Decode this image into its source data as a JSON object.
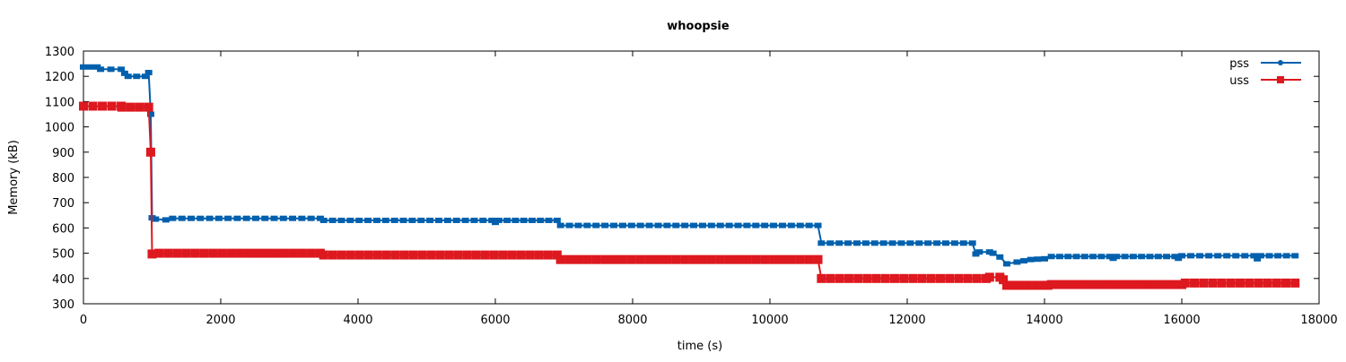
{
  "chart_data": {
    "type": "line",
    "title": "whoopsie",
    "xlabel": "time (s)",
    "ylabel": "Memory (kB)",
    "xlim": [
      0,
      18000
    ],
    "ylim": [
      300,
      1300
    ],
    "xticks": [
      0,
      2000,
      4000,
      6000,
      8000,
      10000,
      12000,
      14000,
      16000,
      18000
    ],
    "yticks": [
      300,
      400,
      500,
      600,
      700,
      800,
      900,
      1000,
      1100,
      1200,
      1300
    ],
    "grid": false,
    "legend_position": "top-right",
    "series": [
      {
        "name": "pss",
        "color": "#0060ad",
        "marker": "circle",
        "x": [
          0,
          200,
          250,
          550,
          600,
          650,
          900,
          950,
          980,
          1000,
          1050,
          1200,
          1300,
          3450,
          3500,
          5950,
          6000,
          6050,
          6900,
          6950,
          10700,
          10750,
          12950,
          13000,
          13050,
          13200,
          13250,
          13350,
          13450,
          13600,
          13800,
          14000,
          14100,
          14950,
          15000,
          15050,
          15900,
          15950,
          16000,
          17050,
          17100,
          17150,
          17650
        ],
        "y": [
          1237,
          1237,
          1228,
          1228,
          1212,
          1200,
          1200,
          1215,
          1050,
          640,
          635,
          632,
          638,
          638,
          630,
          630,
          622,
          630,
          630,
          610,
          610,
          540,
          540,
          497,
          505,
          505,
          500,
          485,
          458,
          465,
          475,
          478,
          487,
          487,
          480,
          487,
          487,
          480,
          490,
          490,
          478,
          490,
          490
        ]
      },
      {
        "name": "uss",
        "color": "#dd181f",
        "marker": "square",
        "x": [
          0,
          550,
          560,
          950,
          980,
          1000,
          1100,
          3450,
          3500,
          6900,
          6950,
          10700,
          10750,
          13150,
          13200,
          13350,
          13400,
          13450,
          14050,
          14100,
          16000,
          16050,
          17650
        ],
        "y": [
          1082,
          1082,
          1078,
          1078,
          900,
          497,
          500,
          500,
          493,
          493,
          475,
          475,
          400,
          400,
          405,
          405,
          395,
          373,
          373,
          376,
          376,
          382,
          382
        ]
      }
    ]
  }
}
